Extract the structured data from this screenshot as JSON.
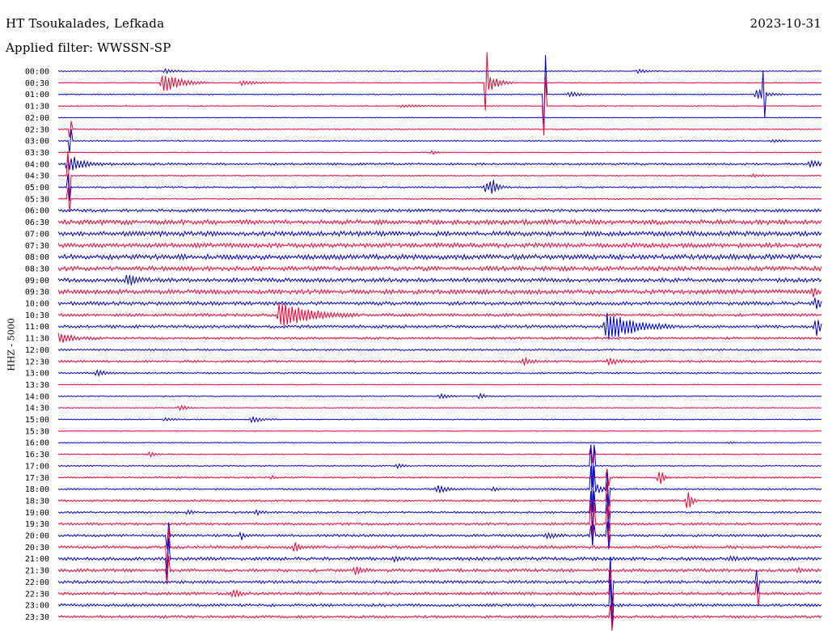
{
  "header": {
    "station": "HT Tsoukalades, Lefkada",
    "date": "2023-10-31",
    "filter_label": "Applied filter: WWSSN-SP"
  },
  "colors": {
    "blue": "#0000cc",
    "red": "#ee0033"
  },
  "chart_data": {
    "type": "helicorder",
    "title": "HT Tsoukalades, Lefkada",
    "ylabel": "HHZ - 5000",
    "trace_colors": [
      "#0000cc",
      "#ee0033"
    ],
    "rows": [
      {
        "label": "00:00",
        "noise": 0.5,
        "events": [
          {
            "t": 0.14,
            "a": 3,
            "d": 0.01
          },
          {
            "t": 0.76,
            "a": 3,
            "d": 0.01
          }
        ]
      },
      {
        "label": "00:30",
        "noise": 0.5,
        "events": [
          {
            "t": 0.137,
            "a": 14,
            "d": 0.02
          },
          {
            "t": 0.56,
            "a": 34,
            "d": 0.003
          },
          {
            "t": 0.564,
            "a": 12,
            "d": 0.012
          },
          {
            "t": 0.24,
            "a": 3,
            "d": 0.02
          }
        ]
      },
      {
        "label": "01:00",
        "noise": 0.6,
        "events": [
          {
            "t": 0.637,
            "a": 48,
            "d": 0.003
          },
          {
            "t": 0.915,
            "a": 8,
            "d": 0.012
          },
          {
            "t": 0.924,
            "a": 26,
            "d": 0.003
          },
          {
            "t": 0.67,
            "a": 4,
            "d": 0.01
          }
        ]
      },
      {
        "label": "01:30",
        "noise": 0.5,
        "events": [
          {
            "t": 0.637,
            "a": 36,
            "d": 0.003
          },
          {
            "t": 0.45,
            "a": 2,
            "d": 0.02
          }
        ]
      },
      {
        "label": "02:00",
        "noise": 0.4,
        "events": []
      },
      {
        "label": "02:30",
        "noise": 0.6,
        "events": [
          {
            "t": 0.015,
            "a": 10,
            "d": 0.002
          }
        ]
      },
      {
        "label": "03:00",
        "noise": 0.7,
        "events": [
          {
            "t": 0.015,
            "a": 14,
            "d": 0.002
          },
          {
            "t": 0.935,
            "a": 2,
            "d": 0.01
          }
        ]
      },
      {
        "label": "03:30",
        "noise": 0.5,
        "events": [
          {
            "t": 0.49,
            "a": 3,
            "d": 0.005
          }
        ]
      },
      {
        "label": "04:00",
        "noise": 1.2,
        "events": [
          {
            "t": 0.013,
            "a": 14,
            "d": 0.005
          },
          {
            "t": 0.02,
            "a": 6,
            "d": 0.02
          },
          {
            "t": 0.985,
            "a": 4,
            "d": 0.02
          }
        ]
      },
      {
        "label": "04:30",
        "noise": 0.7,
        "events": [
          {
            "t": 0.013,
            "a": 30,
            "d": 0.002
          },
          {
            "t": 0.91,
            "a": 2,
            "d": 0.01
          }
        ]
      },
      {
        "label": "05:00",
        "noise": 0.9,
        "events": [
          {
            "t": 0.568,
            "a": 10,
            "d": 0.006
          },
          {
            "t": 0.56,
            "a": 6,
            "d": 0.008
          },
          {
            "t": 0.013,
            "a": 16,
            "d": 0.002
          }
        ]
      },
      {
        "label": "05:30",
        "noise": 0.7,
        "events": [
          {
            "t": 0.013,
            "a": 14,
            "d": 0.002
          }
        ]
      },
      {
        "label": "06:00",
        "noise": 1.6,
        "events": []
      },
      {
        "label": "06:30",
        "noise": 2.6,
        "events": []
      },
      {
        "label": "07:00",
        "noise": 2.6,
        "events": []
      },
      {
        "label": "07:30",
        "noise": 2.4,
        "events": []
      },
      {
        "label": "08:00",
        "noise": 2.7,
        "events": []
      },
      {
        "label": "08:30",
        "noise": 2.4,
        "events": []
      },
      {
        "label": "09:00",
        "noise": 2.2,
        "events": [
          {
            "t": 0.09,
            "a": 8,
            "d": 0.01
          }
        ]
      },
      {
        "label": "09:30",
        "noise": 2.4,
        "events": [
          {
            "t": 0.99,
            "a": 6,
            "d": 0.004
          }
        ]
      },
      {
        "label": "10:00",
        "noise": 2.0,
        "events": [
          {
            "t": 0.993,
            "a": 12,
            "d": 0.005
          }
        ]
      },
      {
        "label": "10:30",
        "noise": 1.6,
        "events": [
          {
            "t": 0.29,
            "a": 17,
            "d": 0.035
          }
        ]
      },
      {
        "label": "11:00",
        "noise": 1.6,
        "events": [
          {
            "t": 0.718,
            "a": 22,
            "d": 0.03
          },
          {
            "t": 0.993,
            "a": 14,
            "d": 0.005
          }
        ]
      },
      {
        "label": "11:30",
        "noise": 1.3,
        "events": [
          {
            "t": 0.0,
            "a": 6,
            "d": 0.02
          }
        ]
      },
      {
        "label": "12:00",
        "noise": 1.0,
        "events": []
      },
      {
        "label": "12:30",
        "noise": 1.2,
        "events": [
          {
            "t": 0.61,
            "a": 4,
            "d": 0.01
          },
          {
            "t": 0.72,
            "a": 3,
            "d": 0.02
          }
        ]
      },
      {
        "label": "13:00",
        "noise": 0.9,
        "events": [
          {
            "t": 0.05,
            "a": 4,
            "d": 0.01
          }
        ]
      },
      {
        "label": "13:30",
        "noise": 0.5,
        "events": []
      },
      {
        "label": "14:00",
        "noise": 0.6,
        "events": [
          {
            "t": 0.5,
            "a": 3,
            "d": 0.01
          },
          {
            "t": 0.553,
            "a": 5,
            "d": 0.004
          }
        ]
      },
      {
        "label": "14:30",
        "noise": 0.5,
        "events": [
          {
            "t": 0.16,
            "a": 5,
            "d": 0.006
          }
        ]
      },
      {
        "label": "15:00",
        "noise": 0.6,
        "events": [
          {
            "t": 0.254,
            "a": 4,
            "d": 0.012
          },
          {
            "t": 0.14,
            "a": 2,
            "d": 0.01
          }
        ]
      },
      {
        "label": "15:30",
        "noise": 0.4,
        "events": []
      },
      {
        "label": "16:00",
        "noise": 0.5,
        "events": [
          {
            "t": 0.88,
            "a": 2,
            "d": 0.005
          }
        ]
      },
      {
        "label": "16:30",
        "noise": 0.6,
        "events": [
          {
            "t": 0.12,
            "a": 4,
            "d": 0.006
          },
          {
            "t": 0.7,
            "a": 10,
            "d": 0.002
          }
        ]
      },
      {
        "label": "17:00",
        "noise": 0.7,
        "events": [
          {
            "t": 0.445,
            "a": 4,
            "d": 0.005
          },
          {
            "t": 0.7,
            "a": 26,
            "d": 0.002
          }
        ]
      },
      {
        "label": "17:30",
        "noise": 0.9,
        "events": [
          {
            "t": 0.788,
            "a": 14,
            "d": 0.004
          },
          {
            "t": 0.72,
            "a": 10,
            "d": 0.002
          },
          {
            "t": 0.28,
            "a": 3,
            "d": 0.004
          }
        ]
      },
      {
        "label": "18:00",
        "noise": 0.9,
        "events": [
          {
            "t": 0.497,
            "a": 6,
            "d": 0.01
          },
          {
            "t": 0.57,
            "a": 3,
            "d": 0.005
          },
          {
            "t": 0.7,
            "a": 28,
            "d": 0.002
          },
          {
            "t": 0.706,
            "a": 6,
            "d": 0.008
          },
          {
            "t": 0.72,
            "a": 20,
            "d": 0.002
          }
        ]
      },
      {
        "label": "18:30",
        "noise": 1.1,
        "events": [
          {
            "t": 0.825,
            "a": 16,
            "d": 0.004
          },
          {
            "t": 0.72,
            "a": 22,
            "d": 0.002
          }
        ]
      },
      {
        "label": "19:00",
        "noise": 1.1,
        "events": [
          {
            "t": 0.7,
            "a": 26,
            "d": 0.002
          },
          {
            "t": 0.72,
            "a": 22,
            "d": 0.002
          },
          {
            "t": 0.17,
            "a": 3,
            "d": 0.005
          },
          {
            "t": 0.26,
            "a": 3,
            "d": 0.005
          }
        ]
      },
      {
        "label": "19:30",
        "noise": 1.3,
        "events": [
          {
            "t": 0.7,
            "a": 26,
            "d": 0.002
          },
          {
            "t": 0.72,
            "a": 22,
            "d": 0.002
          }
        ]
      },
      {
        "label": "20:00",
        "noise": 1.4,
        "events": [
          {
            "t": 0.24,
            "a": 6,
            "d": 0.004
          },
          {
            "t": 0.64,
            "a": 4,
            "d": 0.01
          },
          {
            "t": 0.7,
            "a": 12,
            "d": 0.002
          },
          {
            "t": 0.72,
            "a": 16,
            "d": 0.002
          },
          {
            "t": 0.143,
            "a": 16,
            "d": 0.002
          }
        ]
      },
      {
        "label": "20:30",
        "noise": 1.6,
        "events": [
          {
            "t": 0.143,
            "a": 24,
            "d": 0.002
          },
          {
            "t": 0.31,
            "a": 8,
            "d": 0.004
          }
        ]
      },
      {
        "label": "21:00",
        "noise": 1.8,
        "events": [
          {
            "t": 0.143,
            "a": 24,
            "d": 0.002
          },
          {
            "t": 0.44,
            "a": 4,
            "d": 0.004
          },
          {
            "t": 0.88,
            "a": 3,
            "d": 0.006
          }
        ]
      },
      {
        "label": "21:30",
        "noise": 1.7,
        "events": [
          {
            "t": 0.143,
            "a": 16,
            "d": 0.002
          },
          {
            "t": 0.39,
            "a": 5,
            "d": 0.006
          },
          {
            "t": 0.97,
            "a": 4,
            "d": 0.004
          }
        ]
      },
      {
        "label": "22:00",
        "noise": 1.6,
        "events": [
          {
            "t": 0.725,
            "a": 30,
            "d": 0.002
          },
          {
            "t": 0.915,
            "a": 14,
            "d": 0.002
          }
        ]
      },
      {
        "label": "22:30",
        "noise": 1.6,
        "events": [
          {
            "t": 0.23,
            "a": 6,
            "d": 0.005
          },
          {
            "t": 0.725,
            "a": 30,
            "d": 0.002
          },
          {
            "t": 0.915,
            "a": 14,
            "d": 0.002
          }
        ]
      },
      {
        "label": "23:00",
        "noise": 1.5,
        "events": [
          {
            "t": 0.725,
            "a": 30,
            "d": 0.002
          }
        ]
      },
      {
        "label": "23:30",
        "noise": 1.4,
        "events": [
          {
            "t": 0.725,
            "a": 14,
            "d": 0.002
          }
        ]
      }
    ]
  }
}
